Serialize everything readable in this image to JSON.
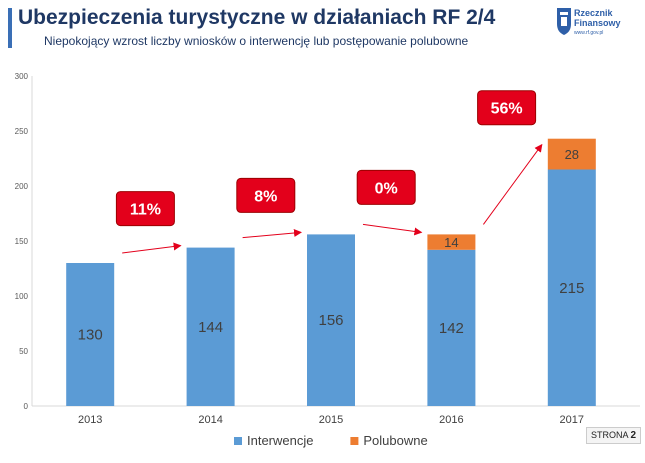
{
  "header": {
    "title": "Ubezpieczenia turystyczne w działaniach RF 2/4",
    "subtitle": "Niepokojący wzrost liczby wniosków o interwencję lub postępowanie polubowne"
  },
  "logo": {
    "line1": "Rzecznik",
    "line2": "Finansowy",
    "url": "www.rf.gov.pl"
  },
  "page": {
    "label": "STRONA",
    "number": "2"
  },
  "colors": {
    "interwencje": "#5b9bd5",
    "polubowne": "#ed7d31",
    "badge": "#e3001b",
    "arrow": "#e3001b",
    "brand": "#1f3864"
  },
  "chart_data": {
    "type": "bar",
    "stacked": true,
    "categories": [
      "2013",
      "2014",
      "2015",
      "2016",
      "2017"
    ],
    "series": [
      {
        "name": "Interwencje",
        "values": [
          130,
          144,
          156,
          142,
          215
        ]
      },
      {
        "name": "Polubowne",
        "values": [
          0,
          0,
          0,
          14,
          28
        ]
      }
    ],
    "ylim": [
      0,
      300
    ],
    "yticks": [
      0,
      50,
      100,
      150,
      200,
      250,
      300
    ],
    "growth_labels": [
      "11%",
      "8%",
      "0%",
      "56%"
    ],
    "legend_position": "bottom",
    "grid": false
  }
}
